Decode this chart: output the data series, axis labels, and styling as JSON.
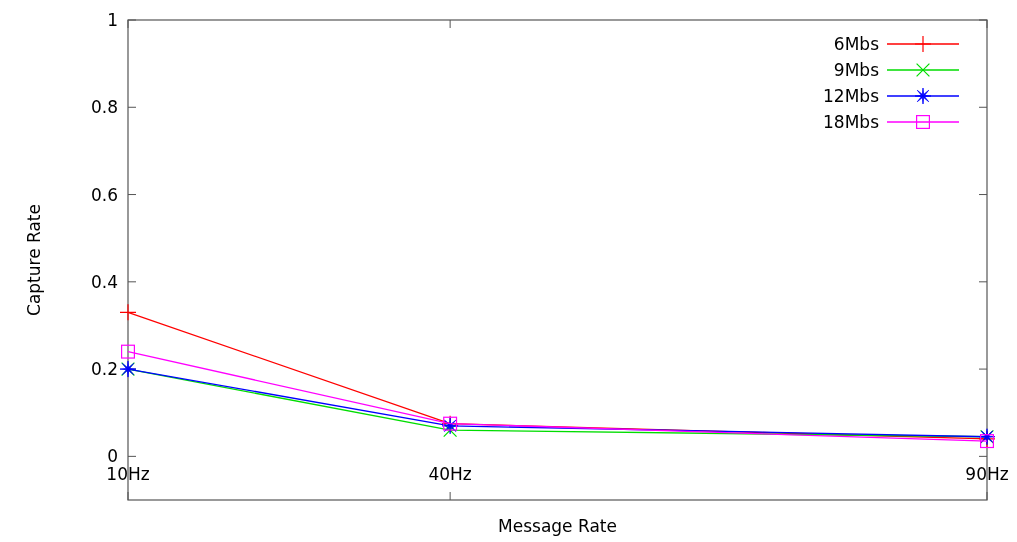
{
  "chart_data": {
    "type": "line",
    "xlabel": "Message Rate",
    "ylabel": "Capture Rate",
    "x": [
      10,
      40,
      90
    ],
    "xlim": [
      10,
      90
    ],
    "xticks": [
      {
        "value": 10,
        "label": "10Hz"
      },
      {
        "value": 40,
        "label": "40Hz"
      },
      {
        "value": 90,
        "label": "90Hz"
      }
    ],
    "ylim": [
      -0.1,
      1
    ],
    "yticks": [
      0,
      0.2,
      0.4,
      0.6,
      0.8,
      1
    ],
    "grid": false,
    "legend": "top right",
    "series": [
      {
        "name": "6Mbs",
        "color": "#ff0000",
        "marker": "plus",
        "values": [
          0.33,
          0.075,
          0.04
        ]
      },
      {
        "name": "9Mbs",
        "color": "#00dd00",
        "marker": "cross",
        "values": [
          0.2,
          0.06,
          0.045
        ]
      },
      {
        "name": "12Mbs",
        "color": "#0000ff",
        "marker": "star",
        "values": [
          0.2,
          0.07,
          0.045
        ]
      },
      {
        "name": "18Mbs",
        "color": "#ff00ff",
        "marker": "square",
        "values": [
          0.24,
          0.075,
          0.035
        ]
      }
    ]
  }
}
